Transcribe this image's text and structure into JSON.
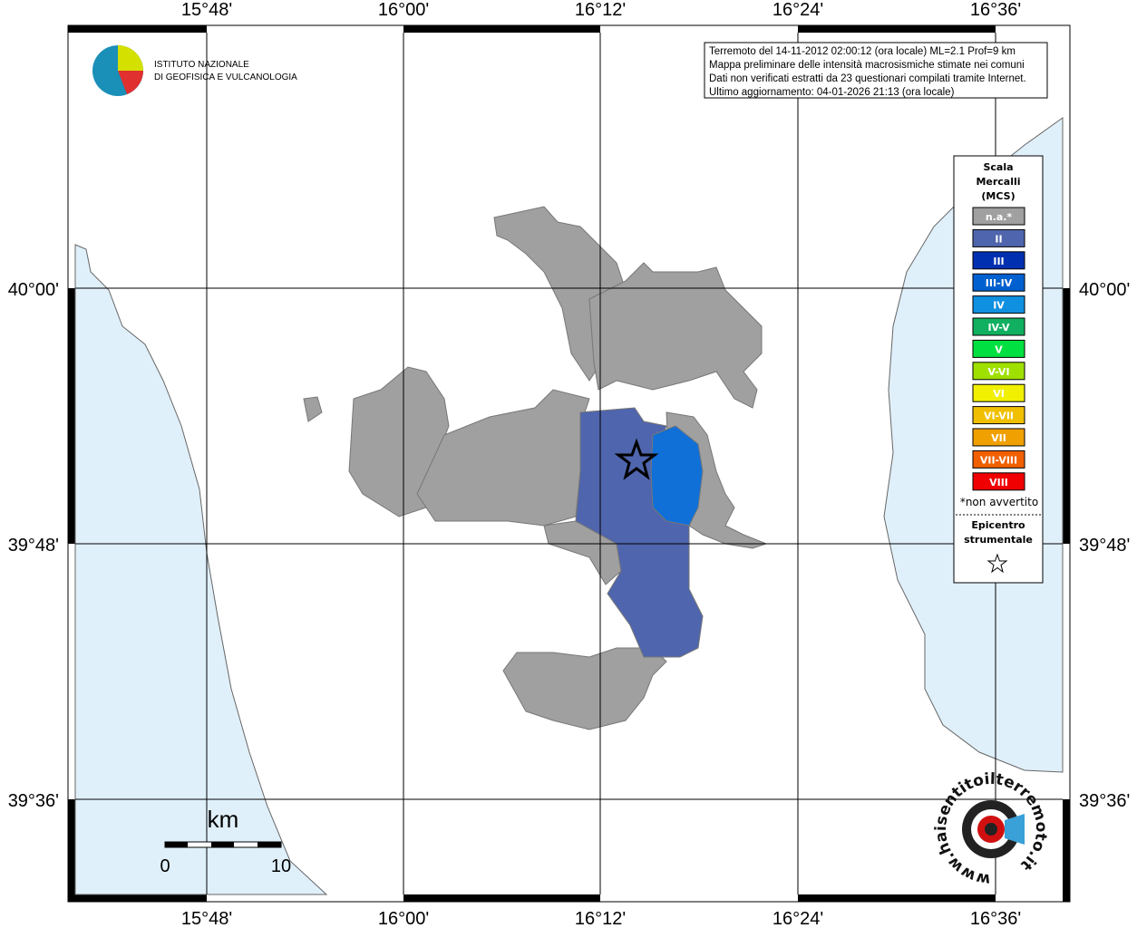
{
  "map": {
    "lon_labels": [
      "15°48'",
      "16°00'",
      "16°12'",
      "16°24'",
      "16°36'"
    ],
    "lat_labels": [
      "40°00'",
      "39°48'",
      "39°36'"
    ],
    "logo": {
      "line1": "ISTITUTO NAZIONALE",
      "line2": "DI GEOFISICA E VULCANOLOGIA"
    },
    "info": [
      "Terremoto del 14-11-2012 02:00:12 (ora locale) ML=2.1 Prof=9 km",
      "Mappa preliminare delle intensità macrosismiche stimate nei comuni",
      "Dati non verificati estratti da 23 questionari compilati tramite Internet.",
      "Ultimo aggiornamento: 04-01-2026 21:13 (ora locale)"
    ],
    "legend": {
      "title": [
        "Scala",
        "Mercalli",
        "(MCS)"
      ],
      "items": [
        {
          "label": "n.a.*",
          "color": "#a0a0a0"
        },
        {
          "label": "II",
          "color": "#4f65ad"
        },
        {
          "label": "III",
          "color": "#0030b0"
        },
        {
          "label": "III-IV",
          "color": "#0060d0"
        },
        {
          "label": "IV",
          "color": "#1090e0"
        },
        {
          "label": "IV-V",
          "color": "#10b060"
        },
        {
          "label": "V",
          "color": "#00e040"
        },
        {
          "label": "V-VI",
          "color": "#a0e000"
        },
        {
          "label": "VI",
          "color": "#f0f000"
        },
        {
          "label": "VI-VII",
          "color": "#f0c000"
        },
        {
          "label": "VII",
          "color": "#f0a000"
        },
        {
          "label": "VII-VIII",
          "color": "#f06000"
        },
        {
          "label": "VIII",
          "color": "#f00000"
        }
      ],
      "note": "*non avvertito",
      "epicenter": [
        "Epicentro",
        "strumentale"
      ]
    },
    "scale": {
      "unit": "km",
      "min": "0",
      "max": "10"
    },
    "site": "www.haisentitoilterremoto.it"
  }
}
